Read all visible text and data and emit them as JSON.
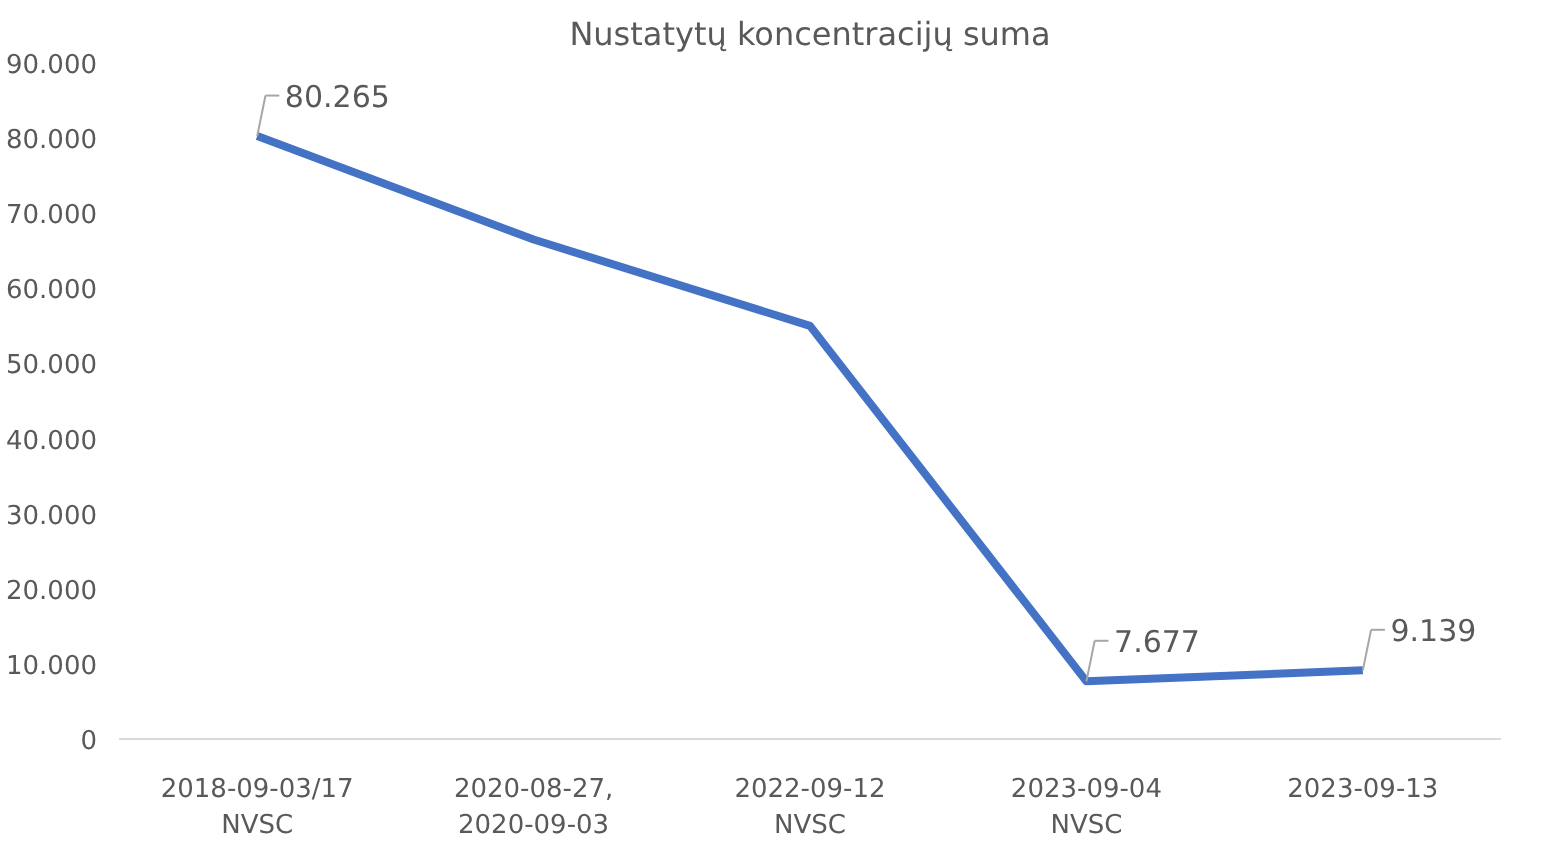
{
  "chart_data": {
    "type": "line",
    "title": "Nustatytų koncentracijų suma",
    "categories": [
      "2018-09-03/17\nNVSC",
      "2020-08-27,\n2020-09-03",
      "2022-09-12\nNVSC",
      "2023-09-04\nNVSC",
      "2023-09-13"
    ],
    "series": [
      {
        "color": "#4472c4",
        "values": [
          80265,
          66500,
          55000,
          7677,
          9139
        ],
        "value_labels": [
          "80.265",
          null,
          null,
          "7.677",
          "9.139"
        ]
      }
    ],
    "ylim": [
      0,
      90000
    ],
    "yticks": [
      {
        "value": 0,
        "label": "0"
      },
      {
        "value": 10000,
        "label": "10.000"
      },
      {
        "value": 20000,
        "label": "20.000"
      },
      {
        "value": 30000,
        "label": "30.000"
      },
      {
        "value": 40000,
        "label": "40.000"
      },
      {
        "value": 50000,
        "label": "50.000"
      },
      {
        "value": 60000,
        "label": "60.000"
      },
      {
        "value": 70000,
        "label": "70.000"
      },
      {
        "value": 80000,
        "label": "80.000"
      },
      {
        "value": 90000,
        "label": "90.000"
      }
    ],
    "marker": "none",
    "line_style": "solid"
  }
}
